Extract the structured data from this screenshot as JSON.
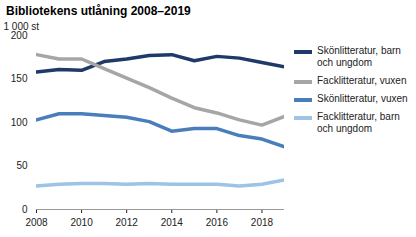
{
  "chart_data": {
    "type": "line",
    "title": "Bibliotekens utlåning 2008–2019",
    "y_label": "1 000 st",
    "x": [
      2008,
      2009,
      2010,
      2011,
      2012,
      2013,
      2014,
      2015,
      2016,
      2017,
      2018,
      2019
    ],
    "series": [
      {
        "name": "Skönlitteratur, barn och ungdom",
        "color": "#1f3a68",
        "values": [
          158,
          161,
          160,
          170,
          173,
          177,
          178,
          171,
          176,
          174,
          169,
          164
        ]
      },
      {
        "name": "Facklitteratur, vuxen",
        "color": "#a6a6a6",
        "values": [
          178,
          173,
          173,
          162,
          151,
          140,
          128,
          117,
          111,
          103,
          97,
          107
        ]
      },
      {
        "name": "Skönlitteratur, vuxen",
        "color": "#4a7ebb",
        "values": [
          103,
          110,
          110,
          108,
          106,
          101,
          90,
          93,
          93,
          85,
          81,
          72
        ]
      },
      {
        "name": "Facklitteratur, barn och ungdom",
        "color": "#9dc3e6",
        "values": [
          27,
          29,
          30,
          30,
          29,
          30,
          29,
          29,
          29,
          27,
          29,
          34
        ]
      }
    ],
    "xlim": [
      2008,
      2019
    ],
    "xticks": [
      2008,
      2010,
      2012,
      2014,
      2016,
      2018
    ],
    "ylim": [
      0,
      200
    ],
    "yticks": [
      0,
      50,
      100,
      150,
      200
    ],
    "grid": false,
    "legend": "right"
  }
}
